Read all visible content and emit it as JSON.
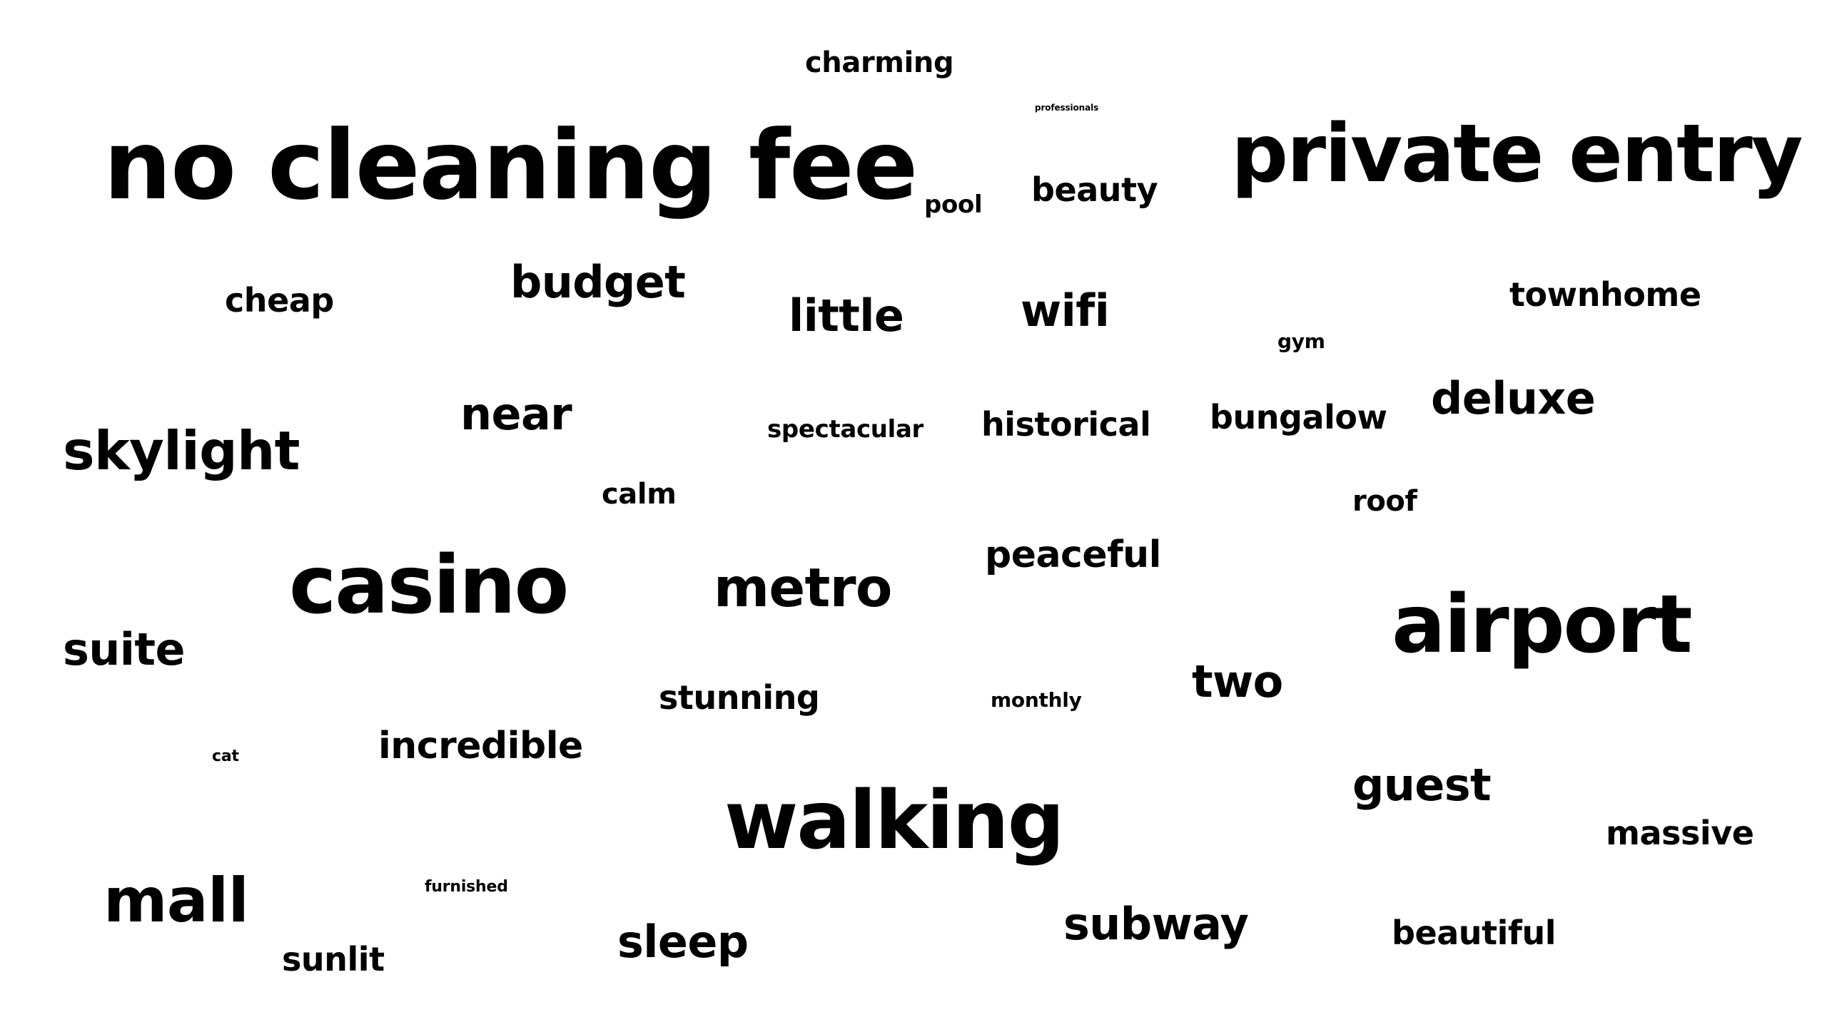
{
  "word_cloud": {
    "text_color": "#000000",
    "background": "#ffffff",
    "words": {
      "charming": "charming",
      "professionals": "professionals",
      "no_cleaning_fee": "no cleaning fee",
      "private_entry": "private entry",
      "pool": "pool",
      "beauty": "beauty",
      "cheap": "cheap",
      "budget": "budget",
      "little": "little",
      "wifi": "wifi",
      "townhome": "townhome",
      "gym": "gym",
      "near": "near",
      "spectacular": "spectacular",
      "historical": "historical",
      "bungalow": "bungalow",
      "deluxe": "deluxe",
      "skylight": "skylight",
      "calm": "calm",
      "roof": "roof",
      "casino": "casino",
      "metro": "metro",
      "peaceful": "peaceful",
      "airport": "airport",
      "suite": "suite",
      "stunning": "stunning",
      "monthly": "monthly",
      "two": "two",
      "cat": "cat",
      "incredible": "incredible",
      "guest": "guest",
      "walking": "walking",
      "massive": "massive",
      "mall": "mall",
      "furnished": "furnished",
      "subway": "subway",
      "beautiful": "beautiful",
      "sleep": "sleep",
      "sunlit": "sunlit"
    }
  }
}
